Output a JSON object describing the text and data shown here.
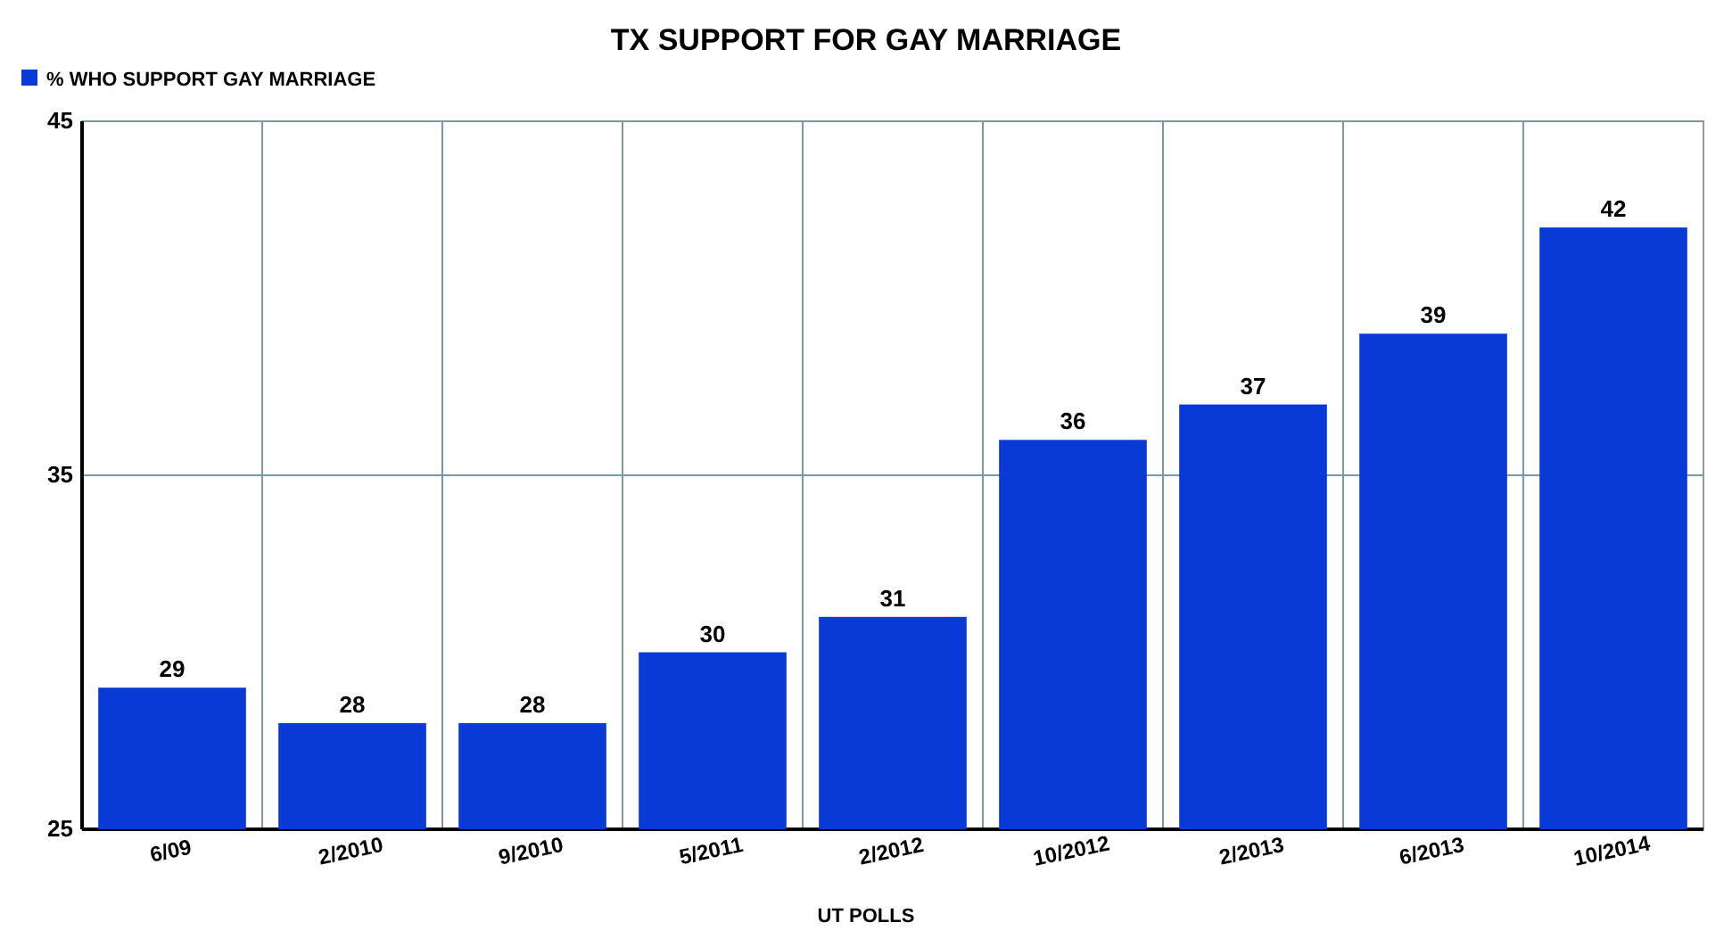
{
  "chart_data": {
    "type": "bar",
    "title": "TX SUPPORT FOR GAY MARRIAGE",
    "xlabel": "UT POLLS",
    "categories": [
      "6/09",
      "2/2010",
      "9/2010",
      "5/2011",
      "2/2012",
      "10/2012",
      "2/2013",
      "6/2013",
      "10/2014"
    ],
    "series": [
      {
        "name": "% WHO SUPPORT GAY MARRIAGE",
        "color": "#0a3ad6",
        "values": [
          29,
          28,
          28,
          30,
          31,
          36,
          37,
          39,
          42
        ]
      }
    ],
    "ylim": [
      25,
      45
    ],
    "yticks": [
      25,
      35,
      45
    ],
    "grid": true,
    "legend": "top left",
    "data_labels": true
  }
}
